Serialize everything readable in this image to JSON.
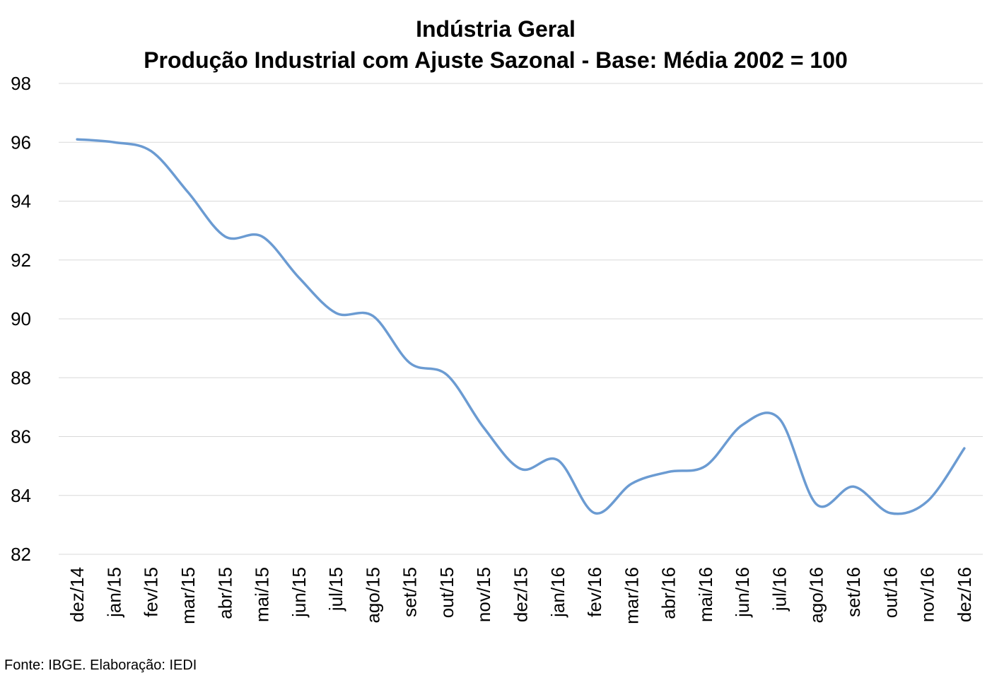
{
  "chart_data": {
    "type": "line",
    "title": "Indústria Geral",
    "subtitle": "Produção Industrial com Ajuste Sazonal - Base: Média 2002 = 100",
    "xlabel": "",
    "ylabel": "",
    "ylim": [
      82,
      98
    ],
    "ytick_step": 2,
    "grid": true,
    "legend": "none",
    "line_color": "#6b9bd2",
    "grid_color": "#d9d9d9",
    "categories": [
      "dez/14",
      "jan/15",
      "fev/15",
      "mar/15",
      "abr/15",
      "mai/15",
      "jun/15",
      "jul/15",
      "ago/15",
      "set/15",
      "out/15",
      "nov/15",
      "dez/15",
      "jan/16",
      "fev/16",
      "mar/16",
      "abr/16",
      "mai/16",
      "jun/16",
      "jul/16",
      "ago/16",
      "set/16",
      "out/16",
      "nov/16",
      "dez/16"
    ],
    "series": [
      {
        "values": [
          96.1,
          96.0,
          95.7,
          94.3,
          92.8,
          92.8,
          91.4,
          90.2,
          90.1,
          88.5,
          88.1,
          86.3,
          84.9,
          85.2,
          83.4,
          84.4,
          84.8,
          85.0,
          86.4,
          86.6,
          83.7,
          84.3,
          83.4,
          83.8,
          85.6
        ]
      }
    ]
  },
  "source_text": "Fonte: IBGE. Elaboração: IEDI"
}
